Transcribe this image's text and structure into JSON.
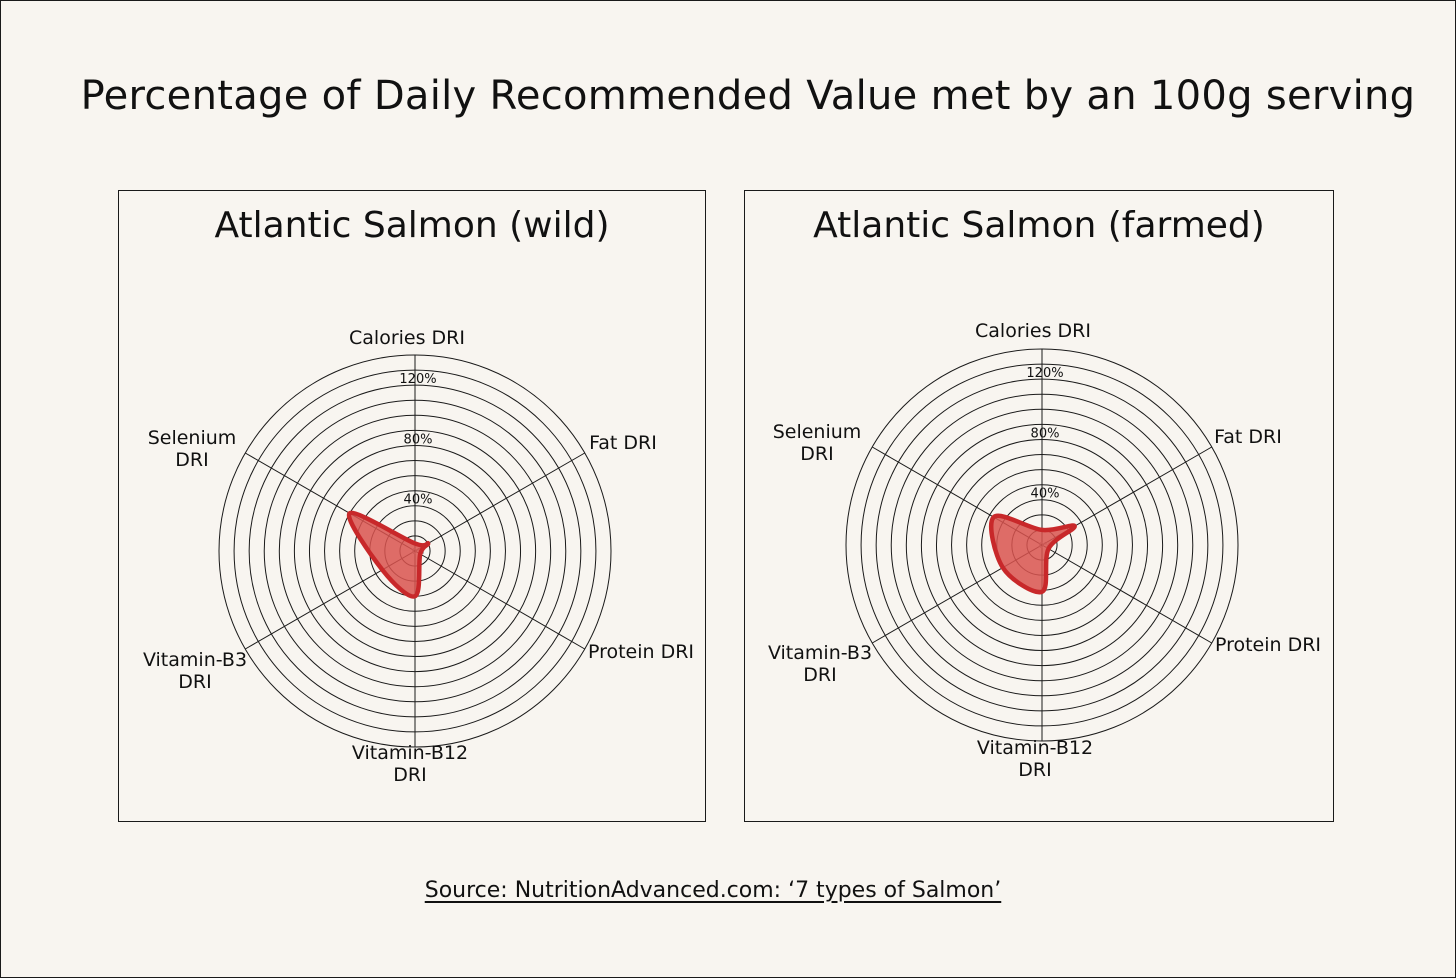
{
  "title": "Percentage of Daily Recommended Value met by an 100g serving",
  "source": "Source: NutritionAdvanced.com: ‘7 types of Salmon’",
  "chart_data": [
    {
      "type": "radar",
      "title": "Atlantic Salmon (wild)",
      "categories": [
        "Calories DRI",
        "Fat DRI",
        "Protein DRI",
        "Vitamin-B12 DRI",
        "Vitamin-B3 DRI",
        "Selenium DRI"
      ],
      "values": [
        5,
        10,
        4,
        30,
        25,
        50
      ],
      "radial_ticks": [
        "0%",
        "40%",
        "80%",
        "120%"
      ],
      "rmax": 130,
      "ring_step": 10,
      "fill_color": "#d9534f",
      "stroke_color": "#c8282a"
    },
    {
      "type": "radar",
      "title": "Atlantic Salmon (farmed)",
      "categories": [
        "Calories DRI",
        "Fat DRI",
        "Protein DRI",
        "Vitamin-B12 DRI",
        "Vitamin-B3 DRI",
        "Selenium DRI"
      ],
      "values": [
        10,
        25,
        5,
        31,
        30,
        37
      ],
      "radial_ticks": [
        "0%",
        "40%",
        "80%",
        "120%"
      ],
      "rmax": 130,
      "ring_step": 10,
      "fill_color": "#d9534f",
      "stroke_color": "#c8282a"
    }
  ]
}
